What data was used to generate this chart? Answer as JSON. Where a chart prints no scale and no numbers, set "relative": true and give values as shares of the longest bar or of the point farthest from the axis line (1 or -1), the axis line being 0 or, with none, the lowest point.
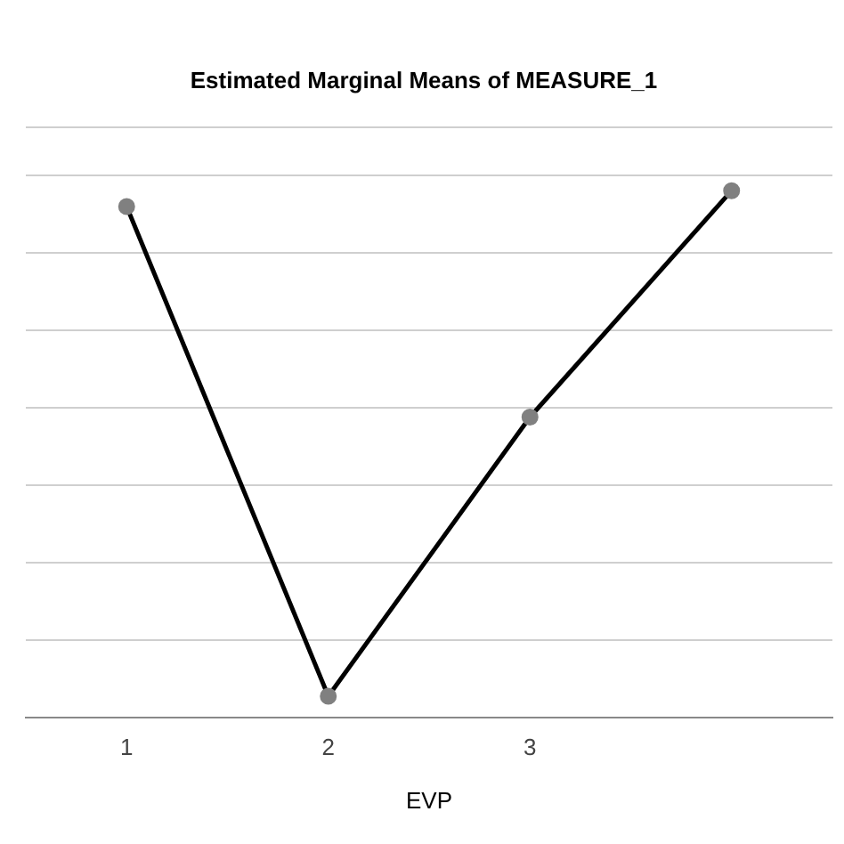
{
  "chart_data": {
    "type": "line",
    "title": "Estimated Marginal Means of MEASURE_1",
    "xlabel": "EVP",
    "categories": [
      "1",
      "2",
      "3",
      null
    ],
    "relative": true,
    "grid": "y",
    "legend": false,
    "marker": "circle",
    "line_style": "solid",
    "series": [
      {
        "color": "#000000",
        "values": [
          0.97,
          0.04,
          0.57,
          1
        ]
      }
    ]
  }
}
